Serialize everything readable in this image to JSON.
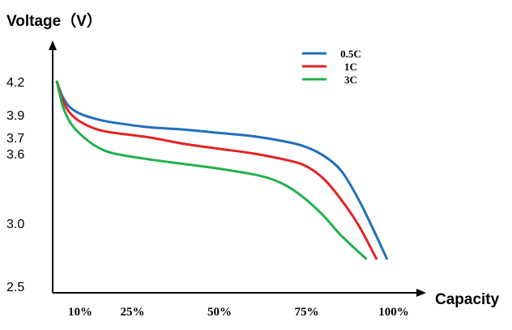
{
  "chart_data": {
    "type": "line",
    "ylabel": "Voltage（V）",
    "xlabel": "Capacity",
    "y_ticks": [
      "4.2",
      "3.9",
      "3.7",
      "3.6",
      "3.0",
      "2.5"
    ],
    "y_tick_values": [
      4.2,
      3.9,
      3.7,
      3.6,
      3.0,
      2.5
    ],
    "x_ticks": [
      "10%",
      "25%",
      "50%",
      "75%",
      "100%"
    ],
    "x_tick_values": [
      10,
      25,
      50,
      75,
      100
    ],
    "grid": false,
    "legend_position": "top-right",
    "series": [
      {
        "name": "0.5C",
        "color": "#1f6fbf",
        "points": [
          [
            3.3,
            4.2
          ],
          [
            5,
            4.06
          ],
          [
            7,
            3.97
          ],
          [
            10,
            3.91
          ],
          [
            15,
            3.86
          ],
          [
            20,
            3.83
          ],
          [
            30,
            3.79
          ],
          [
            40,
            3.77
          ],
          [
            50,
            3.74
          ],
          [
            60,
            3.71
          ],
          [
            70,
            3.67
          ],
          [
            75,
            3.64
          ],
          [
            80,
            3.58
          ],
          [
            85,
            3.45
          ],
          [
            90,
            3.2
          ],
          [
            95,
            2.9
          ],
          [
            98,
            2.72
          ]
        ]
      },
      {
        "name": "1C",
        "color": "#e52222",
        "points": [
          [
            3.3,
            4.2
          ],
          [
            5,
            4.03
          ],
          [
            7,
            3.92
          ],
          [
            10,
            3.84
          ],
          [
            15,
            3.77
          ],
          [
            20,
            3.74
          ],
          [
            30,
            3.7
          ],
          [
            40,
            3.66
          ],
          [
            50,
            3.63
          ],
          [
            60,
            3.6
          ],
          [
            70,
            3.54
          ],
          [
            75,
            3.49
          ],
          [
            80,
            3.38
          ],
          [
            85,
            3.2
          ],
          [
            90,
            2.98
          ],
          [
            95,
            2.72
          ]
        ]
      },
      {
        "name": "3C",
        "color": "#22b14c",
        "points": [
          [
            3.3,
            4.2
          ],
          [
            5,
            3.98
          ],
          [
            7,
            3.84
          ],
          [
            10,
            3.73
          ],
          [
            15,
            3.64
          ],
          [
            20,
            3.6
          ],
          [
            30,
            3.55
          ],
          [
            40,
            3.51
          ],
          [
            50,
            3.47
          ],
          [
            60,
            3.42
          ],
          [
            65,
            3.38
          ],
          [
            70,
            3.31
          ],
          [
            75,
            3.2
          ],
          [
            80,
            3.06
          ],
          [
            85,
            2.9
          ],
          [
            92,
            2.72
          ]
        ]
      }
    ]
  }
}
